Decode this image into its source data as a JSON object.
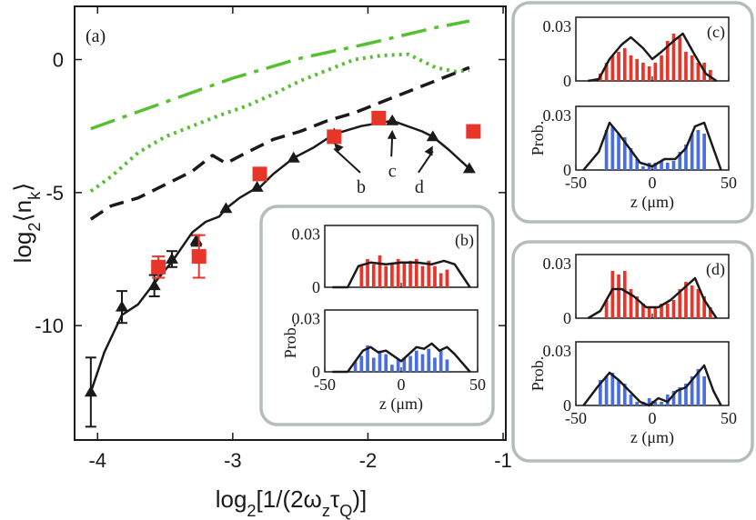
{
  "chart_data": [
    {
      "type": "line",
      "panel": "(a)",
      "xlabel": "log2[1/(2ωzτQ)]",
      "ylabel": "log2⟨nk⟩",
      "xlim": [
        -4.17,
        -0.98
      ],
      "ylim": [
        -14.3,
        2.0
      ],
      "xticks": [
        -4,
        -3,
        -2,
        -1
      ],
      "yticks": [
        0,
        -5,
        -10
      ],
      "xtick_labels": [
        "-4",
        "-3",
        "-2",
        "-1"
      ],
      "ytick_labels": [
        "0",
        "-5",
        "-10"
      ],
      "series": [
        {
          "name": "dash-dot (green)",
          "color": "#56c032",
          "style": "dashdot",
          "x": [
            -4.05,
            -3.5,
            -3.0,
            -2.5,
            -2.0,
            -1.5,
            -1.25
          ],
          "y": [
            -2.6,
            -1.6,
            -0.7,
            0.05,
            0.6,
            1.2,
            1.45
          ]
        },
        {
          "name": "dotted (green)",
          "color": "#56c032",
          "style": "dotted",
          "x": [
            -4.05,
            -3.9,
            -3.7,
            -3.5,
            -3.3,
            -3.1,
            -2.9,
            -2.7,
            -2.5,
            -2.3,
            -2.1,
            -1.9,
            -1.7,
            -1.5,
            -1.35,
            -1.25
          ],
          "y": [
            -4.95,
            -4.4,
            -3.5,
            -2.9,
            -2.5,
            -2.1,
            -1.75,
            -1.3,
            -0.8,
            -0.4,
            0.0,
            0.15,
            0.2,
            -0.3,
            -0.45,
            -0.4
          ]
        },
        {
          "name": "dashed (black)",
          "color": "#1a1a1a",
          "style": "dashed",
          "x": [
            -4.05,
            -3.9,
            -3.7,
            -3.5,
            -3.3,
            -3.15,
            -3.05,
            -2.9,
            -2.7,
            -2.5,
            -2.3,
            -2.1,
            -1.9,
            -1.7,
            -1.5,
            -1.25
          ],
          "y": [
            -6.0,
            -5.5,
            -5.2,
            -4.7,
            -4.2,
            -3.6,
            -3.9,
            -3.5,
            -3.0,
            -2.7,
            -2.3,
            -2.0,
            -1.6,
            -1.2,
            -0.8,
            -0.3
          ]
        },
        {
          "name": "simulation (black solid, triangles)",
          "color": "#1a1a1a",
          "style": "solid",
          "x": [
            -4.05,
            -3.95,
            -3.82,
            -3.7,
            -3.58,
            -3.45,
            -3.3,
            -3.2,
            -3.1,
            -3.05,
            -2.95,
            -2.85,
            -2.8,
            -2.7,
            -2.55,
            -2.4,
            -2.25,
            -2.05,
            -1.82,
            -1.6,
            -1.52,
            -1.4,
            -1.25
          ],
          "y": [
            -12.5,
            -11.0,
            -9.6,
            -9.2,
            -8.4,
            -7.6,
            -6.5,
            -6.1,
            -5.9,
            -5.6,
            -5.2,
            -4.9,
            -4.8,
            -4.3,
            -3.7,
            -3.3,
            -2.8,
            -2.5,
            -2.3,
            -2.7,
            -2.9,
            -3.4,
            -4.1
          ]
        },
        {
          "name": "triangle markers",
          "color": "#1a1a1a",
          "style": "markers-triangle",
          "x": [
            -4.05,
            -3.82,
            -3.58,
            -3.45,
            -3.27,
            -3.05,
            -2.82,
            -2.55,
            -2.25,
            -1.82,
            -1.52,
            -1.25
          ],
          "y": [
            -12.5,
            -9.3,
            -8.5,
            -7.5,
            -6.8,
            -5.6,
            -4.8,
            -3.7,
            -2.8,
            -2.3,
            -2.9,
            -4.1
          ],
          "err": [
            1.3,
            0.6,
            0.4,
            0.3,
            0.2,
            0.0,
            0.0,
            0.0,
            0.0,
            0.0,
            0.0,
            0.0
          ]
        },
        {
          "name": "experiment (red squares)",
          "color": "#e8352a",
          "style": "markers-square",
          "x": [
            -3.55,
            -3.25,
            -2.8,
            -2.25,
            -1.92,
            -1.22
          ],
          "y": [
            -7.8,
            -7.4,
            -4.3,
            -2.9,
            -2.2,
            -2.7
          ],
          "err": [
            0.4,
            0.8,
            0.0,
            0.0,
            0.0,
            0.0
          ]
        }
      ],
      "annotations": [
        {
          "text": "b",
          "x": -2.05,
          "y": -5.0
        },
        {
          "text": "c",
          "x": -1.82,
          "y": -4.4
        },
        {
          "text": "d",
          "x": -1.62,
          "y": -5.0
        }
      ]
    },
    {
      "type": "bar",
      "panel": "(b)",
      "xlabel": "z (μm)",
      "ylabel": "Prob.",
      "xlim": [
        -50,
        50
      ],
      "ylim": [
        0,
        0.035
      ],
      "xtick_labels": [
        "-50",
        "0",
        "50"
      ],
      "ytick_labels": [
        "0.03",
        "0"
      ],
      "top": {
        "color": "#e8352a",
        "bars_x": [
          -26,
          -22,
          -18,
          -14,
          -10,
          -6,
          -2,
          2,
          6,
          10,
          14,
          18,
          22,
          26,
          30
        ],
        "bars_y": [
          0.012,
          0.016,
          0.013,
          0.018,
          0.012,
          0.014,
          0.016,
          0.014,
          0.015,
          0.016,
          0.012,
          0.015,
          0.012,
          0.008,
          0.01
        ],
        "line_x": [
          -45,
          -35,
          -28,
          -20,
          -10,
          0,
          10,
          20,
          28,
          35,
          45
        ],
        "line_y": [
          0.0,
          0.0,
          0.012,
          0.014,
          0.013,
          0.014,
          0.014,
          0.013,
          0.015,
          0.013,
          0.0
        ]
      },
      "bottom": {
        "color": "#4a6ee0",
        "bars_x": [
          -30,
          -26,
          -22,
          -18,
          -14,
          -10,
          -6,
          -2,
          2,
          6,
          10,
          14,
          18,
          22,
          26,
          30
        ],
        "bars_y": [
          0.006,
          0.009,
          0.015,
          0.008,
          0.012,
          0.01,
          0.004,
          0.007,
          0.008,
          0.009,
          0.012,
          0.01,
          0.013,
          0.008,
          0.012,
          0.007
        ],
        "line_x": [
          -45,
          -35,
          -30,
          -25,
          -20,
          -15,
          -10,
          -5,
          0,
          5,
          10,
          15,
          20,
          25,
          30,
          35,
          45
        ],
        "line_y": [
          0.0,
          0.0,
          0.006,
          0.012,
          0.014,
          0.011,
          0.012,
          0.009,
          0.006,
          0.01,
          0.014,
          0.013,
          0.016,
          0.012,
          0.014,
          0.01,
          0.0
        ]
      }
    },
    {
      "type": "bar",
      "panel": "(c)",
      "xlabel": "z (μm)",
      "ylabel": "Prob.",
      "xlim": [
        -50,
        50
      ],
      "ylim": [
        0,
        0.035
      ],
      "xtick_labels": [
        "-50",
        "0",
        "50"
      ],
      "ytick_labels": [
        "0.03",
        "0"
      ],
      "top": {
        "color": "#e8352a",
        "bars_x": [
          -34,
          -30,
          -26,
          -22,
          -18,
          -14,
          -10,
          -6,
          -2,
          2,
          6,
          10,
          14,
          18,
          22,
          26,
          30,
          34,
          38
        ],
        "bars_y": [
          0.004,
          0.01,
          0.014,
          0.016,
          0.018,
          0.014,
          0.012,
          0.01,
          0.008,
          0.01,
          0.014,
          0.022,
          0.026,
          0.024,
          0.016,
          0.014,
          0.01,
          0.01,
          0.006
        ],
        "line_x": [
          -42,
          -35,
          -28,
          -20,
          -14,
          -6,
          0,
          6,
          14,
          20,
          28,
          35,
          42
        ],
        "line_y": [
          0.0,
          0.001,
          0.012,
          0.02,
          0.024,
          0.018,
          0.012,
          0.016,
          0.022,
          0.026,
          0.014,
          0.004,
          0.0
        ]
      },
      "bottom": {
        "color": "#4a6ee0",
        "bars_x": [
          -30,
          -26,
          -22,
          -18,
          -14,
          -10,
          -6,
          -2,
          2,
          6,
          10,
          14,
          18,
          22,
          26,
          30,
          34
        ],
        "bars_y": [
          0.022,
          0.024,
          0.02,
          0.018,
          0.012,
          0.006,
          0.002,
          0.004,
          0.004,
          0.005,
          0.004,
          0.005,
          0.01,
          0.014,
          0.02,
          0.022,
          0.02
        ],
        "line_x": [
          -45,
          -35,
          -28,
          -22,
          -15,
          -8,
          0,
          8,
          15,
          22,
          28,
          34,
          45
        ],
        "line_y": [
          0.0,
          0.01,
          0.026,
          0.02,
          0.012,
          0.004,
          0.002,
          0.006,
          0.006,
          0.012,
          0.024,
          0.026,
          0.0
        ]
      }
    },
    {
      "type": "bar",
      "panel": "(d)",
      "xlabel": "z (μm)",
      "ylabel": "Prob.",
      "xlim": [
        -50,
        50
      ],
      "ylim": [
        0,
        0.035
      ],
      "xtick_labels": [
        "-50",
        "0",
        "50"
      ],
      "ytick_labels": [
        "0.03",
        "0"
      ],
      "top": {
        "color": "#e8352a",
        "bars_x": [
          -30,
          -26,
          -22,
          -18,
          -14,
          -10,
          -6,
          -2,
          2,
          6,
          10,
          14,
          18,
          22,
          26,
          30,
          34,
          38
        ],
        "bars_y": [
          0.01,
          0.026,
          0.024,
          0.026,
          0.016,
          0.012,
          0.008,
          0.006,
          0.006,
          0.008,
          0.008,
          0.01,
          0.016,
          0.02,
          0.018,
          0.016,
          0.012,
          0.006
        ],
        "line_x": [
          -42,
          -34,
          -26,
          -20,
          -12,
          -4,
          4,
          12,
          20,
          28,
          34,
          42
        ],
        "line_y": [
          0.0,
          0.004,
          0.016,
          0.016,
          0.012,
          0.006,
          0.006,
          0.01,
          0.016,
          0.022,
          0.01,
          0.0
        ]
      },
      "bottom": {
        "color": "#4a6ee0",
        "bars_x": [
          -34,
          -30,
          -26,
          -22,
          -18,
          -14,
          -10,
          -6,
          -2,
          2,
          6,
          10,
          14,
          18,
          22,
          26,
          30,
          34
        ],
        "bars_y": [
          0.014,
          0.016,
          0.018,
          0.014,
          0.012,
          0.006,
          0.002,
          0.002,
          0.004,
          0.002,
          0.002,
          0.006,
          0.008,
          0.01,
          0.012,
          0.016,
          0.02,
          0.016
        ],
        "line_x": [
          -45,
          -36,
          -28,
          -22,
          -15,
          -8,
          -2,
          4,
          10,
          16,
          22,
          28,
          34,
          40,
          45
        ],
        "line_y": [
          0.0,
          0.01,
          0.018,
          0.014,
          0.008,
          0.002,
          0.0,
          0.004,
          0.002,
          0.008,
          0.01,
          0.016,
          0.022,
          0.008,
          0.0
        ]
      }
    }
  ]
}
